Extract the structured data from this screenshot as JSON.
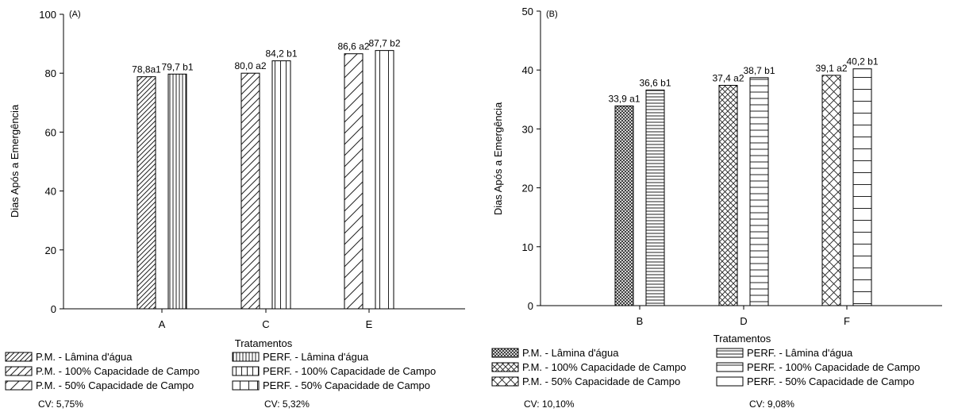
{
  "chart_data": [
    {
      "type": "bar",
      "panel_label": "(A)",
      "xlabel": "Tratamentos",
      "ylabel": "Dias Após a Emergência",
      "ylim": [
        0,
        100
      ],
      "yticks": [
        0,
        20,
        40,
        60,
        80,
        100
      ],
      "categories": [
        "A",
        "C",
        "E"
      ],
      "bars": [
        {
          "category": "A",
          "value": 78.8,
          "label": "78,8a1",
          "pattern": "diag-dense"
        },
        {
          "category": "A",
          "value": 79.7,
          "label": "79,7 b1",
          "pattern": "vert-dense"
        },
        {
          "category": "C",
          "value": 80.0,
          "label": "80,0 a2",
          "pattern": "diag-medium"
        },
        {
          "category": "C",
          "value": 84.2,
          "label": "84,2 b1",
          "pattern": "vert-medium"
        },
        {
          "category": "E",
          "value": 86.6,
          "label": "86,6 a2",
          "pattern": "diag-sparse"
        },
        {
          "category": "E",
          "value": 87.7,
          "label": "87,7 b2",
          "pattern": "vert-sparse"
        }
      ],
      "legend": [
        {
          "label": "P.M. - Lâmina d'água",
          "pattern": "diag-dense"
        },
        {
          "label": "P.M. - 100% Capacidade de Campo",
          "pattern": "diag-medium"
        },
        {
          "label": "P.M. - 50% Capacidade de Campo",
          "pattern": "diag-sparse"
        },
        {
          "label": "PERF. - Lâmina d'água",
          "pattern": "vert-dense"
        },
        {
          "label": "PERF. - 100% Capacidade de Campo",
          "pattern": "vert-medium"
        },
        {
          "label": "PERF. - 50% Capacidade de Campo",
          "pattern": "vert-sparse"
        }
      ],
      "cv_labels": [
        "CV: 5,75%",
        "CV: 5,32%"
      ]
    },
    {
      "type": "bar",
      "panel_label": "(B)",
      "xlabel": "Tratamentos",
      "ylabel": "Dias Após a Emergência",
      "ylim": [
        0,
        50
      ],
      "yticks": [
        0,
        10,
        20,
        30,
        40,
        50
      ],
      "categories": [
        "B",
        "D",
        "F"
      ],
      "bars": [
        {
          "category": "B",
          "value": 33.9,
          "label": "33,9 a1",
          "pattern": "cross-dense"
        },
        {
          "category": "B",
          "value": 36.6,
          "label": "36,6 b1",
          "pattern": "horiz-dense"
        },
        {
          "category": "D",
          "value": 37.4,
          "label": "37,4 a2",
          "pattern": "cross-medium"
        },
        {
          "category": "D",
          "value": 38.7,
          "label": "38,7 b1",
          "pattern": "horiz-medium"
        },
        {
          "category": "F",
          "value": 39.1,
          "label": "39,1 a2",
          "pattern": "cross-sparse"
        },
        {
          "category": "F",
          "value": 40.2,
          "label": "40,2 b1",
          "pattern": "horiz-sparse"
        }
      ],
      "legend": [
        {
          "label": "P.M. - Lâmina d'água",
          "pattern": "cross-dense"
        },
        {
          "label": "P.M. - 100% Capacidade de Campo",
          "pattern": "cross-medium"
        },
        {
          "label": "P.M. - 50% Capacidade de Campo",
          "pattern": "cross-sparse"
        },
        {
          "label": "PERF. - Lâmina d'água",
          "pattern": "horiz-dense"
        },
        {
          "label": "PERF. - 100% Capacidade de Campo",
          "pattern": "horiz-medium"
        },
        {
          "label": "PERF. - 50% Capacidade de Campo",
          "pattern": "horiz-sparse"
        }
      ],
      "cv_labels": [
        "CV: 10,10%",
        "CV: 9,08%"
      ]
    }
  ]
}
